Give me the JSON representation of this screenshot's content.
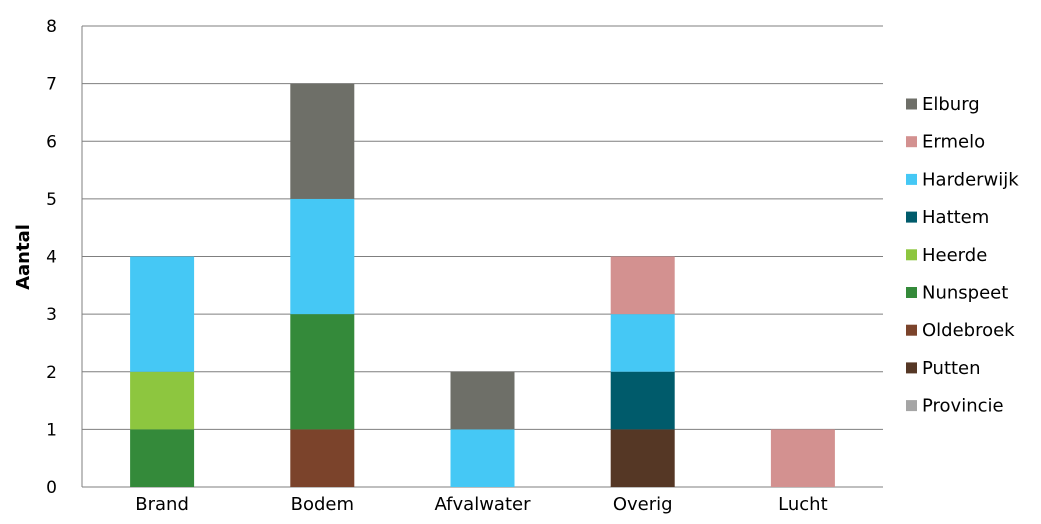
{
  "chart_data": {
    "type": "bar",
    "stacked": true,
    "ylabel": "Aantal",
    "ylim": [
      0,
      8
    ],
    "yticks": [
      "0",
      "1",
      "2",
      "3",
      "4",
      "5",
      "6",
      "7",
      "8"
    ],
    "grid": true,
    "legend_position": "right",
    "categories": [
      "Brand",
      "Bodem",
      "Afvalwater",
      "Overig",
      "Lucht"
    ],
    "series": [
      {
        "name": "Putten",
        "color": "#553725",
        "values": [
          0,
          0,
          0,
          1,
          0
        ]
      },
      {
        "name": "Oldebroek",
        "color": "#7b432b",
        "values": [
          0,
          1,
          0,
          0,
          0
        ]
      },
      {
        "name": "Nunspeet",
        "color": "#348a3a",
        "values": [
          1,
          2,
          0,
          0,
          0
        ]
      },
      {
        "name": "Heerde",
        "color": "#8dc63f",
        "values": [
          1,
          0,
          0,
          0,
          0
        ]
      },
      {
        "name": "Hattem",
        "color": "#005b6b",
        "values": [
          0,
          0,
          0,
          1,
          0
        ]
      },
      {
        "name": "Harderwijk",
        "color": "#45c8f5",
        "values": [
          2,
          2,
          1,
          1,
          0
        ]
      },
      {
        "name": "Ermelo",
        "color": "#d39190",
        "values": [
          0,
          0,
          0,
          1,
          1
        ]
      },
      {
        "name": "Elburg",
        "color": "#6e6f68",
        "values": [
          0,
          2,
          1,
          0,
          0
        ]
      },
      {
        "name": "Provincie",
        "color": "#a5a5a5",
        "values": [
          0,
          0,
          0,
          0,
          0
        ]
      }
    ],
    "legend_order": [
      "Elburg",
      "Ermelo",
      "Harderwijk",
      "Hattem",
      "Heerde",
      "Nunspeet",
      "Oldebroek",
      "Putten",
      "Provincie"
    ]
  }
}
